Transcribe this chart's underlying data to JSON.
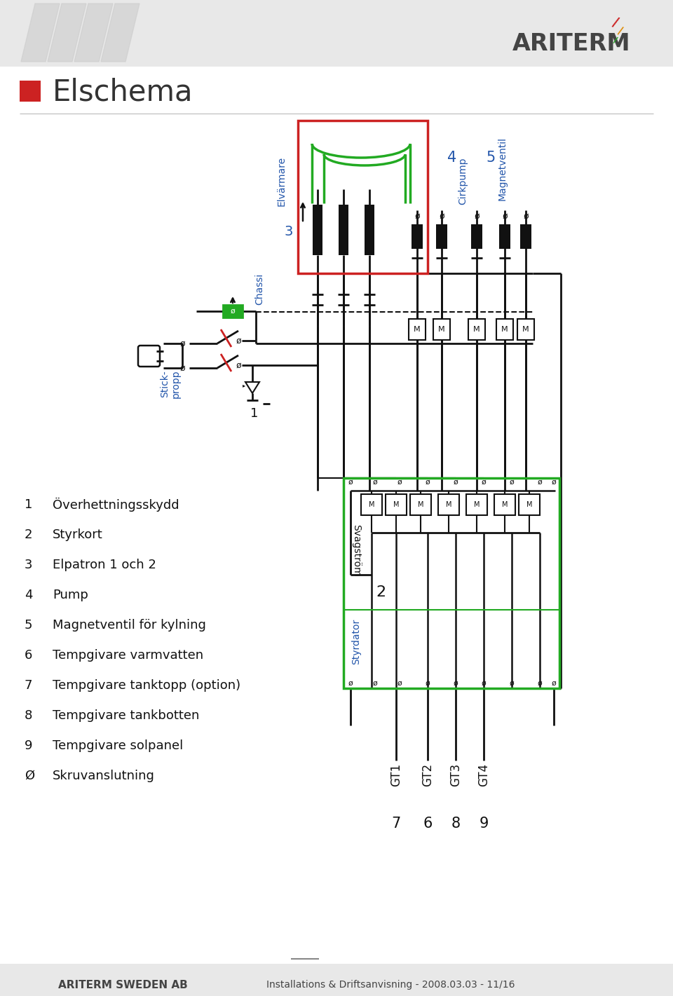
{
  "bg_color": "#e8e8e8",
  "white_area": "#ffffff",
  "title": "Elschema",
  "blue_text_color": "#2255aa",
  "green_color": "#22aa22",
  "red_box_color": "#cc2222",
  "footer_bold": "ARITERM SWEDEN AB",
  "footer_normal": "Installations & Driftsanvisning - 2008.03.03 - 11/16",
  "legend_items": [
    [
      "1",
      "Överhettningsskydd"
    ],
    [
      "2",
      "Styrkort"
    ],
    [
      "3",
      "Elpatron 1 och 2"
    ],
    [
      "4",
      "Pump"
    ],
    [
      "5",
      "Magnetventil för kylning"
    ],
    [
      "6",
      "Tempgivare varmvatten"
    ],
    [
      "7",
      "Tempgivare tanktopp (option)"
    ],
    [
      "8",
      "Tempgivare tankbotten"
    ],
    [
      "9",
      "Tempgivare solpanel"
    ],
    [
      "Ø",
      "Skruvanslutning"
    ]
  ],
  "elv_label": "Elvärmare",
  "cirkpump_label": "Cirkpump",
  "magnetventil_label": "Magnetventil",
  "chassi_label": "Chassi",
  "stickpropp_label": "Stick-\npropp",
  "svagstrom_label": "Svagström",
  "styrdator_label": "Styrdator",
  "gt_labels": [
    "GT1",
    "GT2",
    "GT3",
    "GT4"
  ],
  "gt_numbers": [
    "7",
    "6",
    "8",
    "9"
  ],
  "ariterm_text": "ARITERM"
}
